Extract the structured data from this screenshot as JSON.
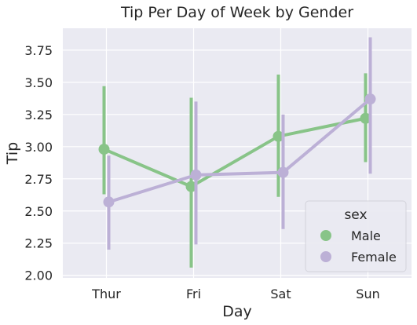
{
  "chart_data": {
    "type": "line",
    "title": "Tip Per Day of Week by Gender",
    "xlabel": "Day",
    "ylabel": "Tip",
    "categories": [
      "Thur",
      "Fri",
      "Sat",
      "Sun"
    ],
    "ylim": [
      1.98,
      3.92
    ],
    "yticks": [
      2.0,
      2.25,
      2.5,
      2.75,
      3.0,
      3.25,
      3.5,
      3.75
    ],
    "ytick_labels": [
      "2.00",
      "2.25",
      "2.50",
      "2.75",
      "3.00",
      "3.25",
      "3.50",
      "3.75"
    ],
    "grid": true,
    "legend": {
      "title": "sex",
      "position": "lower-right"
    },
    "series": [
      {
        "name": "Male",
        "color": "#88c488",
        "values": [
          2.98,
          2.69,
          3.08,
          3.22
        ],
        "ci_low": [
          2.63,
          2.06,
          2.61,
          2.88
        ],
        "ci_high": [
          3.47,
          3.38,
          3.56,
          3.57
        ]
      },
      {
        "name": "Female",
        "color": "#bcb0d6",
        "values": [
          2.57,
          2.78,
          2.8,
          3.37
        ],
        "ci_low": [
          2.2,
          2.24,
          2.36,
          2.79
        ],
        "ci_high": [
          2.93,
          3.35,
          3.25,
          3.85
        ]
      }
    ]
  }
}
